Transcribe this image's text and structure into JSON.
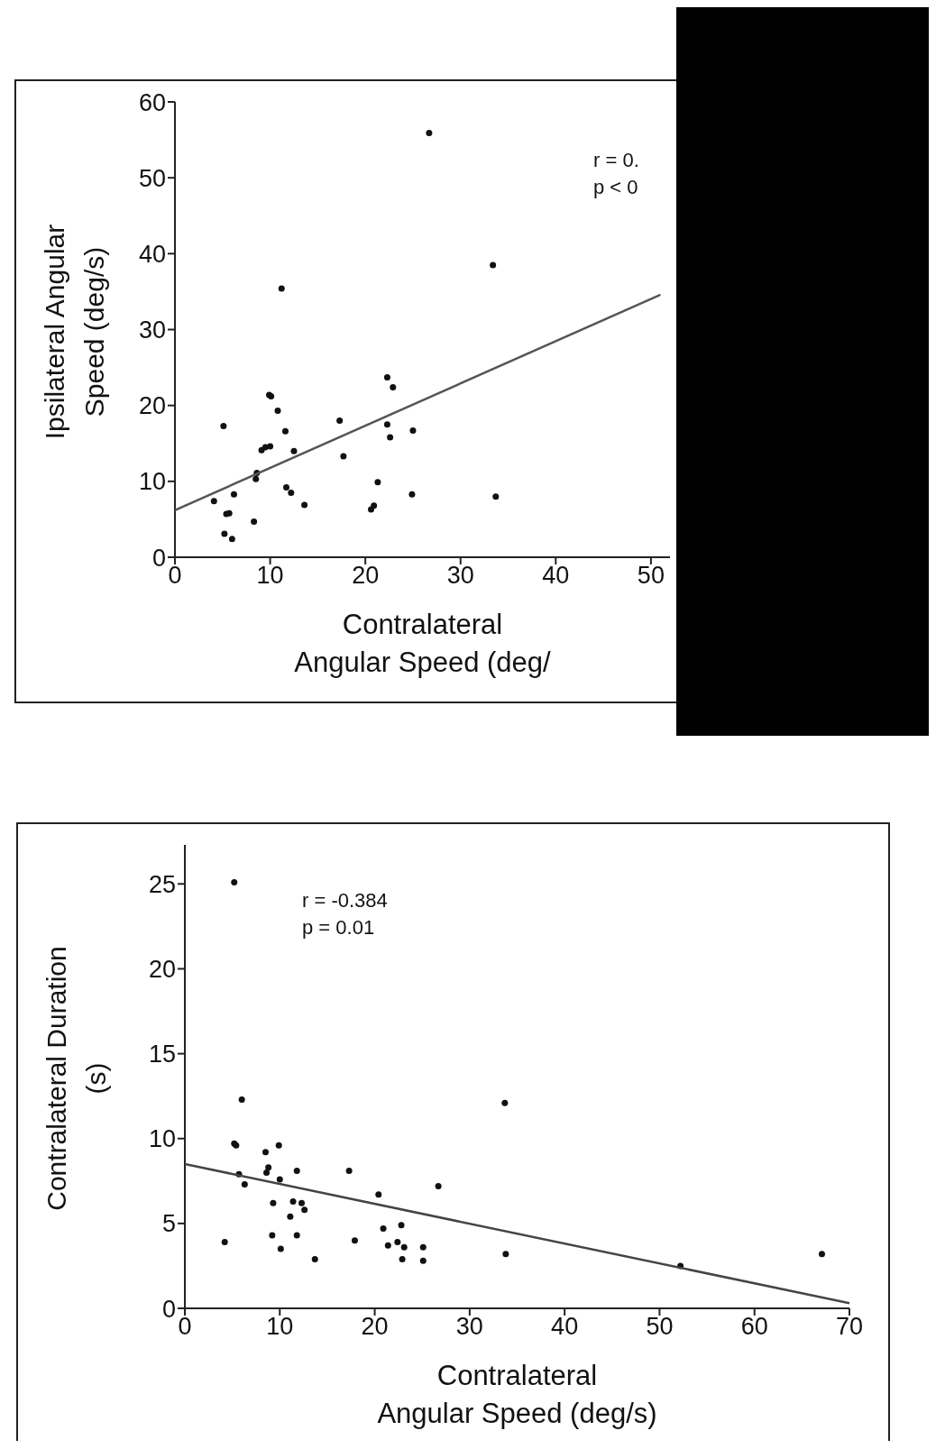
{
  "chart_data": [
    {
      "type": "scatter",
      "xlabel": "Contralateral Angular Speed (deg/",
      "ylabel": "Ipsilateral Angular Speed (deg/s)",
      "annotations": [
        "r = 0.",
        "p < 0"
      ],
      "xlim": [
        0,
        52
      ],
      "xticks": [
        0,
        10,
        20,
        30,
        40,
        50
      ],
      "ylim": [
        0,
        60
      ],
      "yticks": [
        0,
        10,
        20,
        30,
        40,
        50,
        60
      ],
      "series": [
        {
          "marker": "circle",
          "color": "#111111",
          "x": [
            26.7,
            33.4,
            11.2,
            5.1,
            9.9,
            10.1,
            10.8,
            11.6,
            17.3,
            17.7,
            22.3,
            22.9,
            22.3,
            22.6,
            25.0,
            9.1,
            9.5,
            10.0,
            12.5,
            8.6,
            8.5,
            6.2,
            11.7,
            12.2,
            13.6,
            21.3,
            24.9,
            33.7,
            20.6,
            20.9,
            4.1,
            5.4,
            5.7,
            8.3,
            5.2,
            6.0
          ],
          "values": [
            55.9,
            38.5,
            35.4,
            17.3,
            21.4,
            21.2,
            19.3,
            16.6,
            18.0,
            13.3,
            23.7,
            22.4,
            17.5,
            15.8,
            16.7,
            14.1,
            14.5,
            14.6,
            14.0,
            11.1,
            10.3,
            8.3,
            9.2,
            8.5,
            6.9,
            9.9,
            8.3,
            8.0,
            6.3,
            6.8,
            7.4,
            5.7,
            5.8,
            4.7,
            3.1,
            2.4
          ]
        },
        {
          "type": "line",
          "color": "#555555",
          "x": [
            0,
            51
          ],
          "values": [
            6.2,
            34.6
          ]
        }
      ]
    },
    {
      "type": "scatter",
      "xlabel": "Contralateral Angular Speed (deg/s)",
      "ylabel": "Contralateral Duration (s)",
      "annotations": [
        "r = -0.384",
        "p = 0.01"
      ],
      "xlim": [
        0,
        70
      ],
      "xticks": [
        0,
        10,
        20,
        30,
        40,
        50,
        60,
        70
      ],
      "ylim": [
        0,
        27.3
      ],
      "yticks": [
        0,
        5,
        10,
        15,
        20,
        25
      ],
      "series": [
        {
          "marker": "circle",
          "color": "#111111",
          "x": [
            5.2,
            6.0,
            33.7,
            5.2,
            5.4,
            9.9,
            8.5,
            8.8,
            8.6,
            11.8,
            17.3,
            5.7,
            10.0,
            6.3,
            26.7,
            20.4,
            9.3,
            11.4,
            12.3,
            12.6,
            11.1,
            20.9,
            22.8,
            4.2,
            9.2,
            11.8,
            17.9,
            22.4,
            21.4,
            23.1,
            25.1,
            10.1,
            33.8,
            13.7,
            22.9,
            25.1,
            52.2,
            67.1
          ],
          "values": [
            25.1,
            12.3,
            12.1,
            9.7,
            9.6,
            9.6,
            9.2,
            8.3,
            8.0,
            8.1,
            8.1,
            7.9,
            7.6,
            7.3,
            7.2,
            6.7,
            6.2,
            6.3,
            6.2,
            5.8,
            5.4,
            4.7,
            4.9,
            3.9,
            4.3,
            4.3,
            4.0,
            3.9,
            3.7,
            3.6,
            3.6,
            3.5,
            3.2,
            2.9,
            2.9,
            2.8,
            2.5,
            3.2
          ]
        },
        {
          "type": "line",
          "color": "#444444",
          "x": [
            0,
            70
          ],
          "values": [
            8.5,
            0.3
          ]
        }
      ]
    }
  ]
}
